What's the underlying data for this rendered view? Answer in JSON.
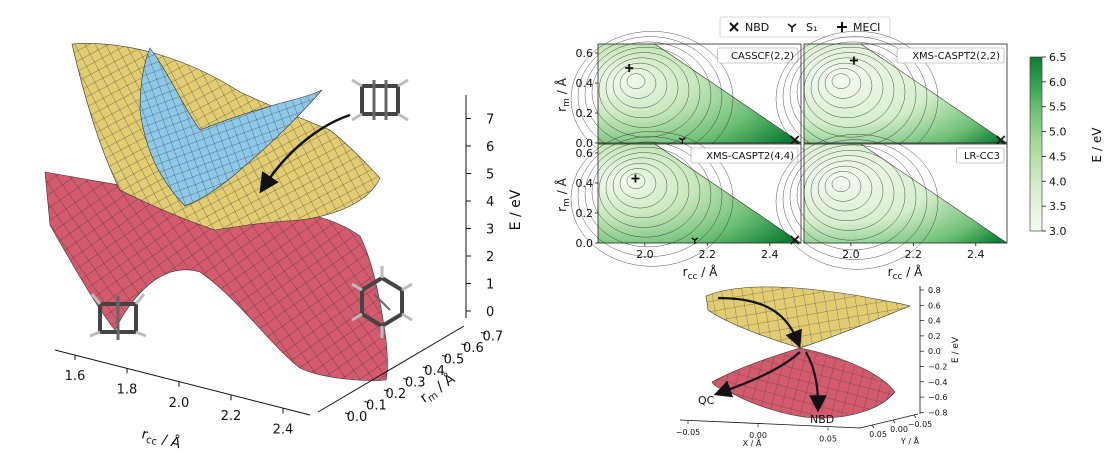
{
  "legend": [
    {
      "marker": "x",
      "label": "NBD"
    },
    {
      "marker": "tri",
      "label": "S₁"
    },
    {
      "marker": "plus",
      "label": "MECI"
    }
  ],
  "colors": {
    "upper_surface": "#e2cc72",
    "s1_surface": "#8ec8e8",
    "lower_surface": "#d45a6e",
    "contour_light": "#f1f8ec",
    "contour_dark": "#0a7a2d",
    "colorbar": [
      "#f4faf1",
      "#d6eecd",
      "#a8d99a",
      "#6cbf74",
      "#33a04f",
      "#0e7d35"
    ]
  },
  "chart_data": [
    {
      "type": "surface3d",
      "panel": "left",
      "xlabel": "r_cc / Å",
      "ylabel": "r_m / Å",
      "zlabel": "E / eV",
      "x_ticks": [
        "1.6",
        "1.8",
        "2.0",
        "2.2",
        "2.4"
      ],
      "y_ticks": [
        "0.0",
        "0.1",
        "0.2",
        "0.3",
        "0.4",
        "0.5",
        "0.6",
        "0.7"
      ],
      "z_ticks": [
        "0",
        "1",
        "2",
        "3",
        "4",
        "5",
        "6",
        "7"
      ],
      "surfaces": [
        "ground",
        "excited",
        "S1"
      ]
    },
    {
      "type": "heatmap",
      "panel": "contour-grid",
      "xlabel": "r_cc / Å",
      "ylabel": "r_m / Å",
      "x_ticks": [
        "2.0",
        "2.2",
        "2.4"
      ],
      "y_ticks": [
        "0.0",
        "0.2",
        "0.4",
        "0.6"
      ],
      "xlim": [
        1.85,
        2.5
      ],
      "ylim": [
        0.0,
        0.66
      ],
      "panels": [
        {
          "title": "CASSCF(2,2)",
          "meci": [
            1.95,
            0.5
          ],
          "s1": [
            2.12,
            0.0
          ],
          "nbd": [
            2.48,
            0.0
          ]
        },
        {
          "title": "XMS-CASPT2(2,2)",
          "meci": [
            2.01,
            0.55
          ],
          "nbd": [
            2.48,
            0.0
          ]
        },
        {
          "title": "XMS-CASPT2(4,4)",
          "meci": [
            1.97,
            0.43
          ],
          "s1": [
            2.16,
            0.0
          ],
          "nbd": [
            2.48,
            0.0
          ]
        },
        {
          "title": "LR-CC3"
        }
      ],
      "colorbar": {
        "label": "E / eV",
        "ticks": [
          "3.0",
          "3.5",
          "4.0",
          "4.5",
          "5.0",
          "5.5",
          "6.0",
          "6.5"
        ],
        "range": [
          3.0,
          6.5
        ]
      }
    },
    {
      "type": "surface3d",
      "panel": "bottom-right",
      "xlabel": "X / Å",
      "ylabel": "Y / Å",
      "zlabel": "E / eV",
      "x_ticks": [
        "−0.05",
        "0.00",
        "0.05"
      ],
      "y_ticks": [
        "0.05",
        "0.00",
        "−0.05"
      ],
      "z_ticks": [
        "0.8",
        "0.6",
        "0.4",
        "0.2",
        "0.0",
        "−0.2",
        "−0.4",
        "−0.6",
        "−0.8"
      ],
      "annotations": [
        "QC",
        "NBD"
      ]
    }
  ]
}
